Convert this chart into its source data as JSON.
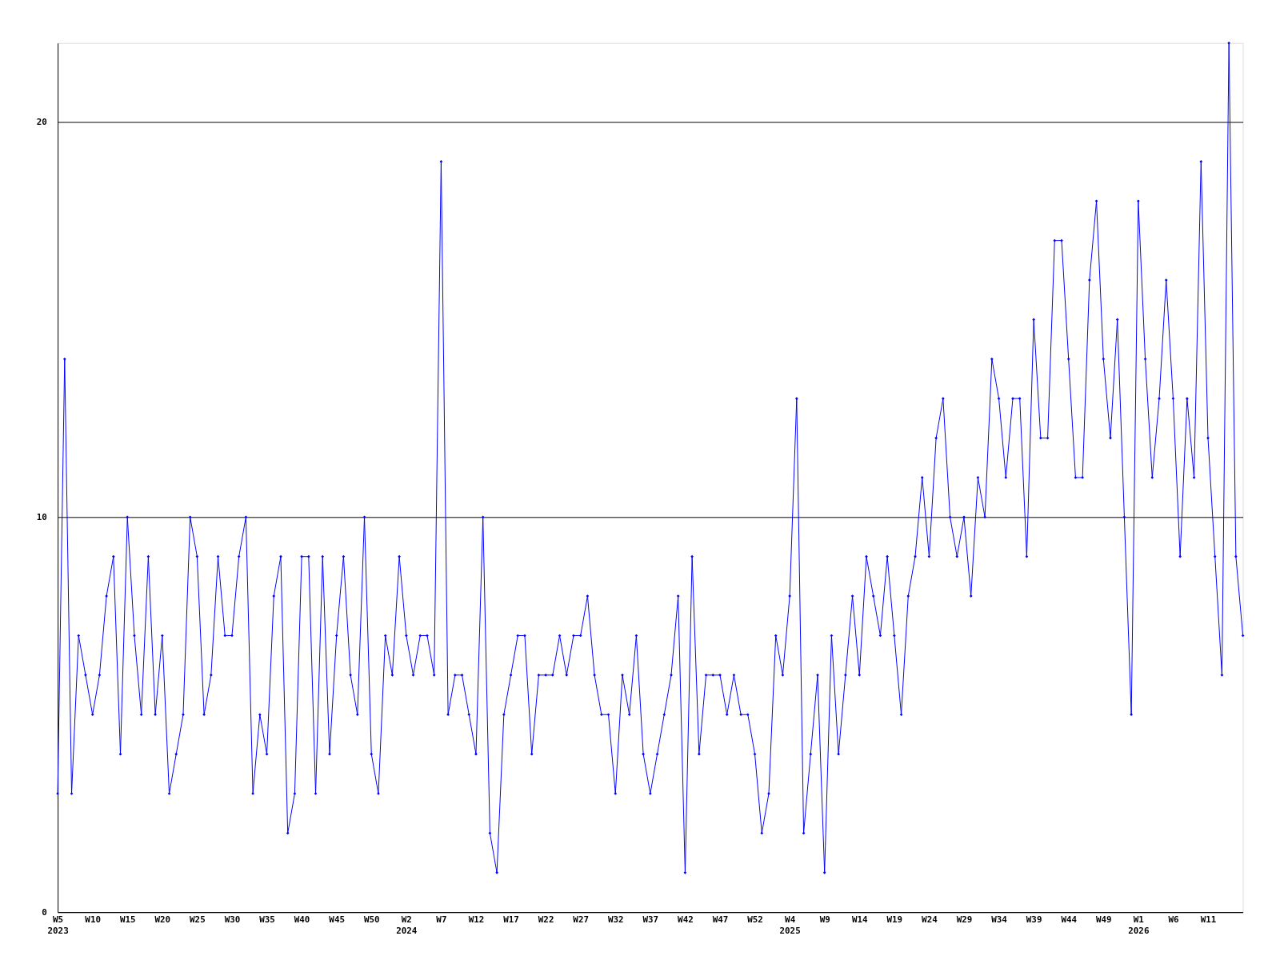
{
  "chart_data": {
    "type": "line",
    "categories": [
      "W5 2023",
      null,
      null,
      null,
      null,
      "W10",
      null,
      null,
      null,
      null,
      "W15",
      null,
      null,
      null,
      null,
      "W20",
      null,
      null,
      null,
      null,
      "W25",
      null,
      null,
      null,
      null,
      "W30",
      null,
      null,
      null,
      null,
      "W35",
      null,
      null,
      null,
      null,
      "W40",
      null,
      null,
      null,
      null,
      "W45",
      null,
      null,
      null,
      null,
      "W50",
      null,
      null,
      null,
      null,
      "W2 2024",
      null,
      null,
      null,
      null,
      "W7",
      null,
      null,
      null,
      null,
      "W12",
      null,
      null,
      null,
      null,
      "W17",
      null,
      null,
      null,
      null,
      "W22",
      null,
      null,
      null,
      null,
      "W27",
      null,
      null,
      null,
      null,
      "W32",
      null,
      null,
      null,
      null,
      "W37",
      null,
      null,
      null,
      null,
      "W42",
      null,
      null,
      null,
      null,
      "W47",
      null,
      null,
      null,
      null,
      "W52",
      null,
      null,
      null,
      null,
      "W4 2025",
      null,
      null,
      null,
      null,
      "W9",
      null,
      null,
      null,
      null,
      "W14",
      null,
      null,
      null,
      null,
      "W19",
      null,
      null,
      null,
      null,
      "W24",
      null,
      null,
      null,
      null,
      "W29",
      null,
      null,
      null,
      null,
      "W34",
      null,
      null,
      null,
      null,
      "W39",
      null,
      null,
      null,
      null,
      "W44",
      null,
      null,
      null,
      null,
      "W49",
      null,
      null,
      null,
      null,
      "W1 2026",
      null,
      null,
      null,
      null,
      "W6",
      null,
      null,
      null,
      null,
      "W11",
      null,
      null,
      null,
      null,
      null
    ],
    "series": [
      {
        "color": "#0000ff",
        "values": [
          3,
          14,
          3,
          7,
          6,
          5,
          6,
          8,
          9,
          4,
          10,
          7,
          5,
          9,
          5,
          7,
          3,
          4,
          5,
          10,
          9,
          5,
          6,
          9,
          7,
          7,
          9,
          10,
          3,
          5,
          4,
          8,
          9,
          2,
          3,
          9,
          9,
          3,
          9,
          4,
          7,
          9,
          6,
          5,
          10,
          4,
          3,
          7,
          6,
          9,
          7,
          6,
          7,
          7,
          6,
          19,
          5,
          6,
          6,
          5,
          4,
          10,
          2,
          1,
          5,
          6,
          7,
          7,
          4,
          6,
          6,
          6,
          7,
          6,
          7,
          7,
          8,
          6,
          5,
          5,
          3,
          6,
          5,
          7,
          4,
          3,
          4,
          5,
          6,
          8,
          1,
          9,
          4,
          6,
          6,
          6,
          5,
          6,
          5,
          5,
          4,
          2,
          3,
          7,
          6,
          8,
          13,
          2,
          4,
          6,
          1,
          7,
          4,
          6,
          8,
          6,
          9,
          8,
          7,
          9,
          7,
          5,
          8,
          9,
          11,
          9,
          12,
          13,
          10,
          9,
          10,
          8,
          11,
          10,
          14,
          13,
          11,
          13,
          13,
          9,
          15,
          12,
          12,
          17,
          17,
          14,
          11,
          11,
          16,
          18,
          14,
          12,
          15,
          10,
          5,
          18,
          14,
          11,
          13,
          16,
          13,
          9,
          13,
          11,
          19,
          12,
          9,
          6,
          22,
          9,
          7
        ]
      }
    ],
    "ylim": [
      0,
      22
    ],
    "yticks": [
      0,
      10,
      20
    ],
    "grid": "y",
    "marker": "diamond",
    "line_style": "solid"
  }
}
